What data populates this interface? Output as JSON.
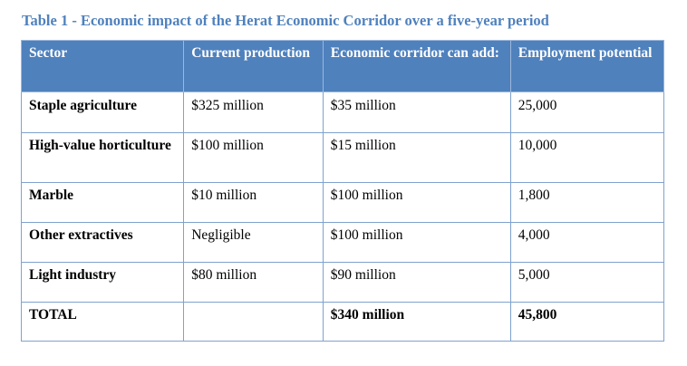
{
  "caption": "Table 1 - Economic impact of the Herat Economic Corridor over a five-year period",
  "table": {
    "headers": [
      "Sector",
      "Current production",
      "Economic corridor can add:",
      "Employment potential"
    ],
    "rows": [
      [
        "Staple agriculture",
        "$325 million",
        "$35 million",
        "25,000"
      ],
      [
        "High-value horticulture",
        "$100 million",
        "$15 million",
        "10,000"
      ],
      [
        "Marble",
        "$10 million",
        "$100 million",
        "1,800"
      ],
      [
        "Other extractives",
        "Negligible",
        "$100 million",
        "4,000"
      ],
      [
        "Light industry",
        "$80 million",
        "$90 million",
        "5,000"
      ],
      [
        "TOTAL",
        "",
        "$340 million",
        "45,800"
      ]
    ]
  },
  "colors": {
    "header_background": "#4f81bd",
    "caption_text": "#4f81bd",
    "border": "#7fa2cf"
  }
}
